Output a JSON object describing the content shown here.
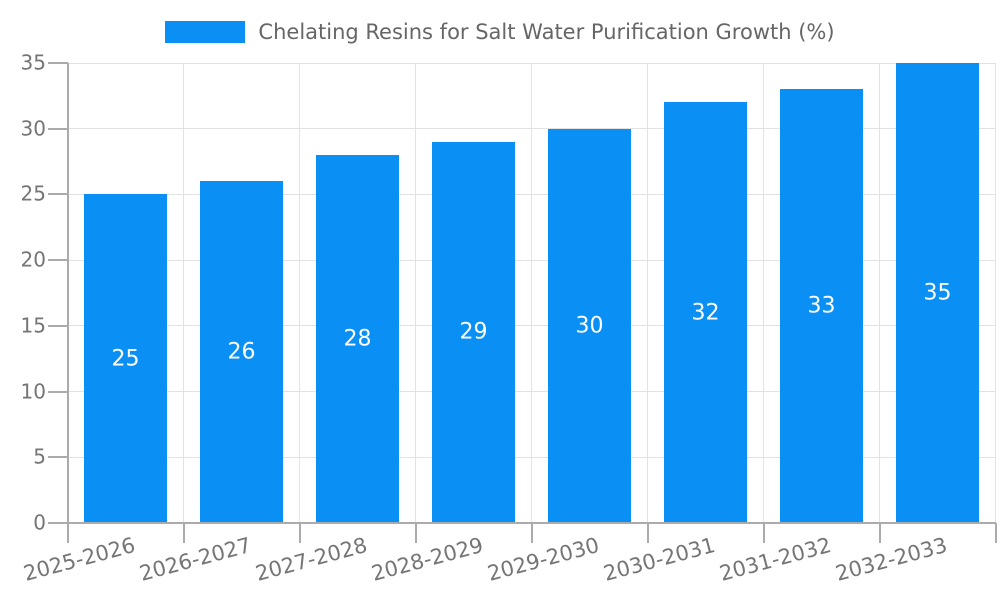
{
  "chart_data": {
    "type": "bar",
    "title": "Chelating Resins for Salt Water Purification Growth (%)",
    "categories": [
      "2025-2026",
      "2026-2027",
      "2027-2028",
      "2028-2029",
      "2029-2030",
      "2030-2031",
      "2031-2032",
      "2032-2033"
    ],
    "values": [
      25,
      26,
      28,
      29,
      30,
      32,
      33,
      35
    ],
    "xlabel": "",
    "ylabel": "",
    "ylim": [
      0,
      35
    ],
    "yticks": [
      0,
      5,
      10,
      15,
      20,
      25,
      30,
      35
    ],
    "grid": true,
    "legend_position": "top-center",
    "bar_color": "#0a90f5",
    "value_label_color": "#ffffff",
    "axis_color": "#ababab",
    "grid_color": "#e2e2e2",
    "tick_label_color": "#757575",
    "legend_text_color": "#666666",
    "background_color": "#ffffff"
  }
}
